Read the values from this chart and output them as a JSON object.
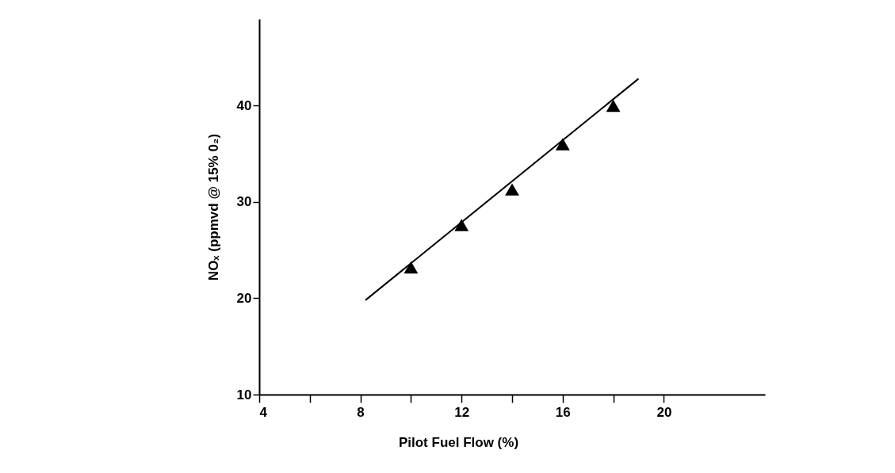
{
  "chart_data": {
    "type": "scatter",
    "xlabel": "Pilot Fuel Flow (%)",
    "ylabel": "NOₓ (ppmvd @ 15% 0₂)",
    "xlim": [
      4,
      24
    ],
    "ylim": [
      10,
      49
    ],
    "xticks": [
      4,
      {
        "value": 6,
        "label": null
      },
      8,
      {
        "value": 10,
        "label": null
      },
      12,
      {
        "value": 14,
        "label": null
      },
      16,
      {
        "value": 18,
        "label": null
      },
      20
    ],
    "yticks": [
      10,
      20,
      30,
      40
    ],
    "grid": false,
    "legend": false,
    "series": [
      {
        "marker": "triangle",
        "color": "#000000",
        "x": [
          10,
          12,
          14,
          16,
          18
        ],
        "values": [
          23.2,
          27.6,
          31.3,
          36.0,
          40.0
        ]
      },
      {
        "type": "line",
        "marker": "none",
        "line_style": "solid",
        "color": "#000000",
        "x": [
          8.2,
          19.0
        ],
        "values": [
          19.8,
          42.8
        ]
      }
    ]
  }
}
